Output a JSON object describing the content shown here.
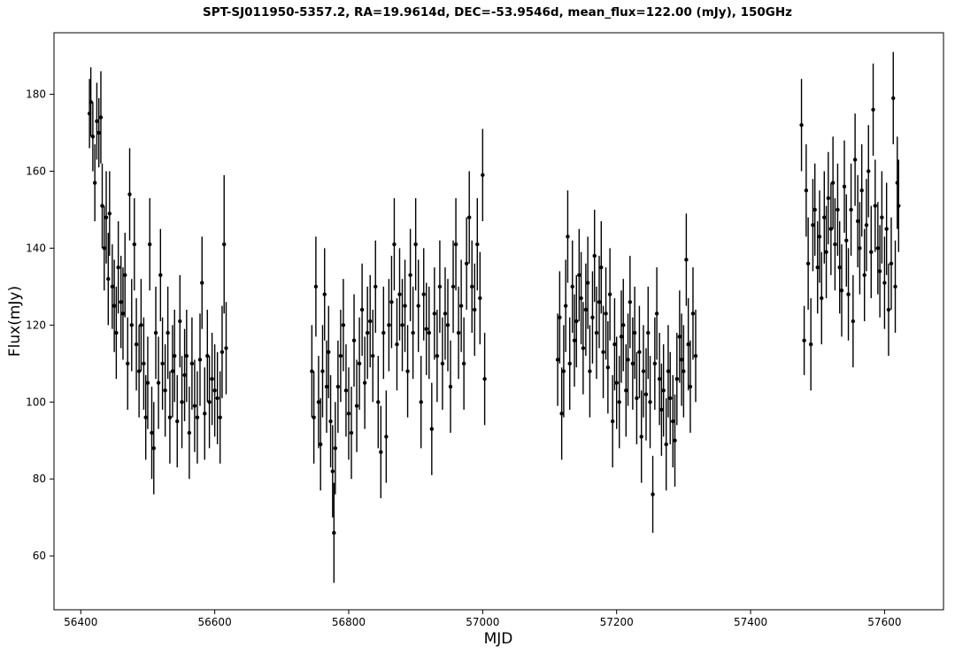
{
  "chart_data": {
    "type": "scatter",
    "title": "SPT-SJ011950-5357.2, RA=19.9614d, DEC=-53.9546d, mean_flux=122.00 (mJy), 150GHz",
    "xlabel": "MJD",
    "ylabel": "Flux(mJy)",
    "xlim": [
      56360,
      57688
    ],
    "ylim": [
      46,
      196
    ],
    "xticks": [
      56400,
      56600,
      56800,
      57000,
      57200,
      57400,
      57600
    ],
    "yticks": [
      60,
      80,
      100,
      120,
      140,
      160,
      180
    ],
    "grid": false,
    "legend": "none",
    "series_color": "#000000",
    "error_bars": true,
    "series": [
      {
        "points": [
          [
            56413,
            175,
            9
          ],
          [
            56415,
            178,
            9
          ],
          [
            56418,
            169,
            9
          ],
          [
            56421,
            157,
            10
          ],
          [
            56424,
            173,
            10
          ],
          [
            56427,
            170,
            9
          ],
          [
            56430,
            174,
            12
          ],
          [
            56432,
            151,
            11
          ],
          [
            56435,
            140,
            11
          ],
          [
            56438,
            148,
            12
          ],
          [
            56441,
            132,
            12
          ],
          [
            56443,
            149,
            11
          ],
          [
            56447,
            130,
            11
          ],
          [
            56450,
            125,
            12
          ],
          [
            56453,
            118,
            12
          ],
          [
            56456,
            135,
            12
          ],
          [
            56460,
            126,
            12
          ],
          [
            56463,
            123,
            12
          ],
          [
            56466,
            133,
            11
          ],
          [
            56470,
            110,
            12
          ],
          [
            56473,
            154,
            12
          ],
          [
            56476,
            120,
            12
          ],
          [
            56480,
            141,
            12
          ],
          [
            56483,
            115,
            12
          ],
          [
            56487,
            108,
            12
          ],
          [
            56490,
            120,
            12
          ],
          [
            56494,
            110,
            12
          ],
          [
            56497,
            96,
            11
          ],
          [
            56500,
            105,
            12
          ],
          [
            56503,
            141,
            12
          ],
          [
            56506,
            92,
            12
          ],
          [
            56509,
            88,
            12
          ],
          [
            56512,
            118,
            12
          ],
          [
            56516,
            105,
            12
          ],
          [
            56519,
            133,
            12
          ],
          [
            56522,
            110,
            12
          ],
          [
            56526,
            103,
            12
          ],
          [
            56530,
            118,
            12
          ],
          [
            56533,
            96,
            12
          ],
          [
            56537,
            108,
            12
          ],
          [
            56540,
            112,
            12
          ],
          [
            56544,
            95,
            12
          ],
          [
            56548,
            121,
            12
          ],
          [
            56551,
            100,
            12
          ],
          [
            56555,
            107,
            12
          ],
          [
            56558,
            112,
            12
          ],
          [
            56562,
            92,
            12
          ],
          [
            56566,
            110,
            12
          ],
          [
            56570,
            99,
            12
          ],
          [
            56574,
            96,
            12
          ],
          [
            56578,
            111,
            12
          ],
          [
            56581,
            131,
            12
          ],
          [
            56585,
            97,
            12
          ],
          [
            56589,
            112,
            12
          ],
          [
            56592,
            100,
            12
          ],
          [
            56596,
            106,
            12
          ],
          [
            56600,
            103,
            12
          ],
          [
            56604,
            101,
            12
          ],
          [
            56608,
            96,
            12
          ],
          [
            56611,
            113,
            12
          ],
          [
            56614,
            141,
            18
          ],
          [
            56617,
            114,
            12
          ],
          [
            56745,
            108,
            12
          ],
          [
            56748,
            96,
            12
          ],
          [
            56751,
            130,
            13
          ],
          [
            56755,
            100,
            12
          ],
          [
            56758,
            89,
            12
          ],
          [
            56761,
            108,
            12
          ],
          [
            56764,
            128,
            12
          ],
          [
            56767,
            104,
            12
          ],
          [
            56770,
            113,
            12
          ],
          [
            56773,
            95,
            12
          ],
          [
            56776,
            82,
            12
          ],
          [
            56778,
            66,
            13
          ],
          [
            56780,
            88,
            12
          ],
          [
            56784,
            104,
            12
          ],
          [
            56788,
            112,
            12
          ],
          [
            56792,
            120,
            12
          ],
          [
            56796,
            103,
            12
          ],
          [
            56800,
            97,
            12
          ],
          [
            56804,
            92,
            12
          ],
          [
            56808,
            116,
            12
          ],
          [
            56812,
            99,
            12
          ],
          [
            56816,
            110,
            12
          ],
          [
            56820,
            124,
            12
          ],
          [
            56824,
            105,
            12
          ],
          [
            56828,
            118,
            12
          ],
          [
            56832,
            121,
            12
          ],
          [
            56836,
            112,
            12
          ],
          [
            56840,
            130,
            12
          ],
          [
            56844,
            100,
            12
          ],
          [
            56848,
            87,
            12
          ],
          [
            56852,
            118,
            12
          ],
          [
            56856,
            91,
            12
          ],
          [
            56860,
            120,
            12
          ],
          [
            56864,
            126,
            12
          ],
          [
            56868,
            141,
            12
          ],
          [
            56872,
            115,
            12
          ],
          [
            56876,
            128,
            12
          ],
          [
            56880,
            120,
            12
          ],
          [
            56884,
            125,
            12
          ],
          [
            56888,
            108,
            12
          ],
          [
            56892,
            133,
            12
          ],
          [
            56896,
            118,
            12
          ],
          [
            56900,
            141,
            12
          ],
          [
            56904,
            125,
            12
          ],
          [
            56908,
            100,
            12
          ],
          [
            56912,
            128,
            12
          ],
          [
            56916,
            119,
            12
          ],
          [
            56920,
            118,
            12
          ],
          [
            56924,
            93,
            12
          ],
          [
            56928,
            123,
            12
          ],
          [
            56932,
            112,
            12
          ],
          [
            56936,
            130,
            12
          ],
          [
            56940,
            110,
            12
          ],
          [
            56944,
            123,
            12
          ],
          [
            56948,
            120,
            12
          ],
          [
            56952,
            104,
            12
          ],
          [
            56956,
            130,
            12
          ],
          [
            56960,
            141,
            12
          ],
          [
            56964,
            118,
            12
          ],
          [
            56968,
            125,
            12
          ],
          [
            56972,
            110,
            12
          ],
          [
            56976,
            136,
            12
          ],
          [
            56980,
            148,
            12
          ],
          [
            56984,
            130,
            12
          ],
          [
            56988,
            124,
            12
          ],
          [
            56992,
            141,
            12
          ],
          [
            56996,
            127,
            12
          ],
          [
            57000,
            159,
            12
          ],
          [
            57003,
            106,
            12
          ],
          [
            57112,
            111,
            12
          ],
          [
            57115,
            122,
            12
          ],
          [
            57118,
            97,
            12
          ],
          [
            57121,
            108,
            12
          ],
          [
            57124,
            125,
            12
          ],
          [
            57127,
            143,
            12
          ],
          [
            57130,
            110,
            12
          ],
          [
            57134,
            130,
            12
          ],
          [
            57137,
            116,
            12
          ],
          [
            57140,
            121,
            12
          ],
          [
            57144,
            133,
            12
          ],
          [
            57147,
            127,
            12
          ],
          [
            57150,
            114,
            12
          ],
          [
            57154,
            124,
            12
          ],
          [
            57157,
            131,
            12
          ],
          [
            57160,
            108,
            12
          ],
          [
            57164,
            122,
            12
          ],
          [
            57167,
            138,
            12
          ],
          [
            57170,
            118,
            12
          ],
          [
            57174,
            126,
            12
          ],
          [
            57177,
            135,
            12
          ],
          [
            57180,
            113,
            12
          ],
          [
            57184,
            123,
            12
          ],
          [
            57187,
            109,
            12
          ],
          [
            57190,
            128,
            12
          ],
          [
            57194,
            95,
            12
          ],
          [
            57197,
            115,
            12
          ],
          [
            57200,
            105,
            12
          ],
          [
            57204,
            100,
            12
          ],
          [
            57207,
            117,
            12
          ],
          [
            57210,
            120,
            12
          ],
          [
            57214,
            103,
            12
          ],
          [
            57217,
            111,
            12
          ],
          [
            57220,
            126,
            12
          ],
          [
            57224,
            110,
            12
          ],
          [
            57227,
            118,
            12
          ],
          [
            57230,
            101,
            12
          ],
          [
            57234,
            113,
            12
          ],
          [
            57237,
            91,
            12
          ],
          [
            57240,
            108,
            12
          ],
          [
            57244,
            102,
            12
          ],
          [
            57247,
            118,
            12
          ],
          [
            57250,
            100,
            12
          ],
          [
            57254,
            76,
            10
          ],
          [
            57257,
            110,
            12
          ],
          [
            57260,
            123,
            12
          ],
          [
            57264,
            106,
            12
          ],
          [
            57267,
            98,
            12
          ],
          [
            57270,
            103,
            12
          ],
          [
            57274,
            89,
            12
          ],
          [
            57277,
            108,
            12
          ],
          [
            57280,
            101,
            12
          ],
          [
            57284,
            95,
            12
          ],
          [
            57287,
            90,
            12
          ],
          [
            57290,
            106,
            12
          ],
          [
            57294,
            117,
            12
          ],
          [
            57297,
            111,
            12
          ],
          [
            57300,
            108,
            12
          ],
          [
            57304,
            137,
            12
          ],
          [
            57307,
            115,
            12
          ],
          [
            57310,
            104,
            12
          ],
          [
            57314,
            123,
            12
          ],
          [
            57318,
            112,
            12
          ],
          [
            57476,
            172,
            12
          ],
          [
            57480,
            116,
            9
          ],
          [
            57483,
            155,
            12
          ],
          [
            57486,
            136,
            12
          ],
          [
            57490,
            115,
            12
          ],
          [
            57493,
            146,
            12
          ],
          [
            57496,
            150,
            12
          ],
          [
            57500,
            135,
            12
          ],
          [
            57503,
            143,
            12
          ],
          [
            57506,
            127,
            12
          ],
          [
            57510,
            148,
            12
          ],
          [
            57513,
            139,
            12
          ],
          [
            57516,
            153,
            12
          ],
          [
            57520,
            145,
            12
          ],
          [
            57523,
            157,
            12
          ],
          [
            57526,
            141,
            12
          ],
          [
            57530,
            150,
            12
          ],
          [
            57533,
            135,
            12
          ],
          [
            57536,
            129,
            12
          ],
          [
            57540,
            156,
            12
          ],
          [
            57543,
            142,
            12
          ],
          [
            57546,
            128,
            12
          ],
          [
            57550,
            150,
            12
          ],
          [
            57553,
            121,
            12
          ],
          [
            57556,
            163,
            12
          ],
          [
            57560,
            147,
            12
          ],
          [
            57563,
            140,
            12
          ],
          [
            57566,
            155,
            12
          ],
          [
            57570,
            133,
            12
          ],
          [
            57573,
            146,
            12
          ],
          [
            57576,
            160,
            12
          ],
          [
            57580,
            139,
            12
          ],
          [
            57583,
            176,
            12
          ],
          [
            57586,
            151,
            12
          ],
          [
            57590,
            140,
            12
          ],
          [
            57593,
            134,
            12
          ],
          [
            57596,
            148,
            12
          ],
          [
            57600,
            131,
            12
          ],
          [
            57603,
            145,
            12
          ],
          [
            57606,
            124,
            12
          ],
          [
            57610,
            136,
            12
          ],
          [
            57613,
            179,
            12
          ],
          [
            57616,
            130,
            12
          ],
          [
            57619,
            157,
            12
          ],
          [
            57621,
            151,
            12
          ]
        ]
      }
    ]
  }
}
